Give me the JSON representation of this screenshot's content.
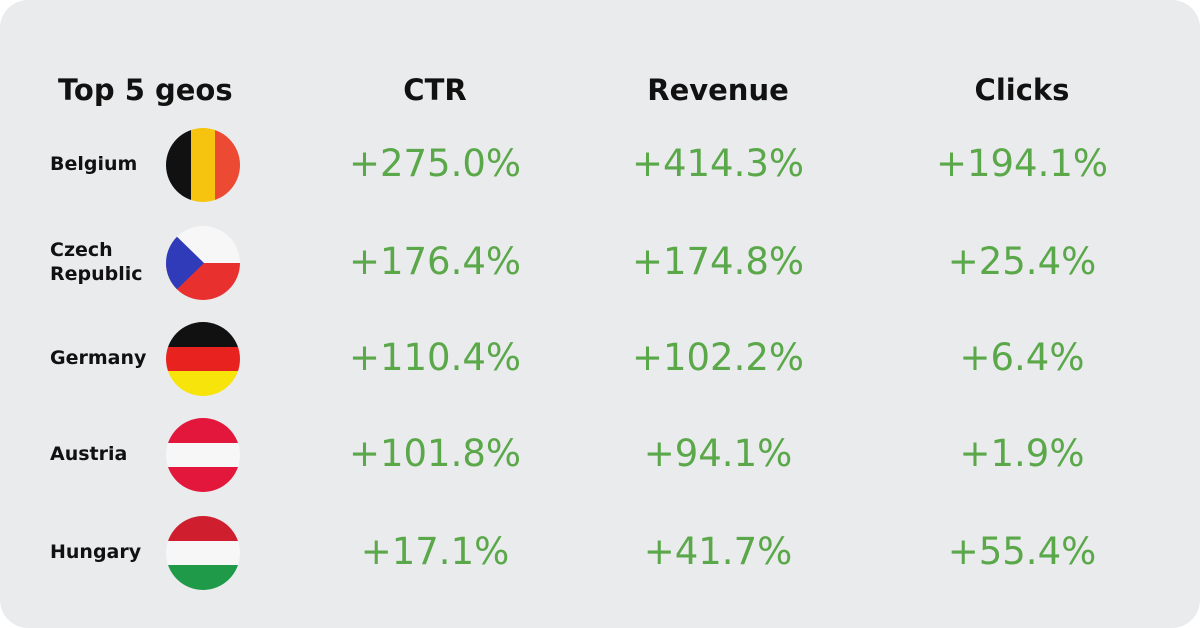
{
  "header": {
    "geos_label": "Top 5 geos",
    "ctr_label": "CTR",
    "revenue_label": "Revenue",
    "clicks_label": "Clicks"
  },
  "rows": [
    {
      "country": "Belgium",
      "flag": "belgium-flag-icon",
      "ctr": "+275.0%",
      "revenue": "+414.3%",
      "clicks": "+194.1%"
    },
    {
      "country": "Czech\nRepublic",
      "flag": "czech-republic-flag-icon",
      "ctr": "+176.4%",
      "revenue": "+174.8%",
      "clicks": "+25.4%"
    },
    {
      "country": "Germany",
      "flag": "germany-flag-icon",
      "ctr": "+110.4%",
      "revenue": "+102.2%",
      "clicks": "+6.4%"
    },
    {
      "country": "Austria",
      "flag": "austria-flag-icon",
      "ctr": "+101.8%",
      "revenue": "+94.1%",
      "clicks": "+1.9%"
    },
    {
      "country": "Hungary",
      "flag": "hungary-flag-icon",
      "ctr": "+17.1%",
      "revenue": "+41.7%",
      "clicks": "+55.4%"
    }
  ],
  "colors": {
    "background": "#eaebed",
    "positive_value": "#5ba84a",
    "text": "#111111"
  }
}
